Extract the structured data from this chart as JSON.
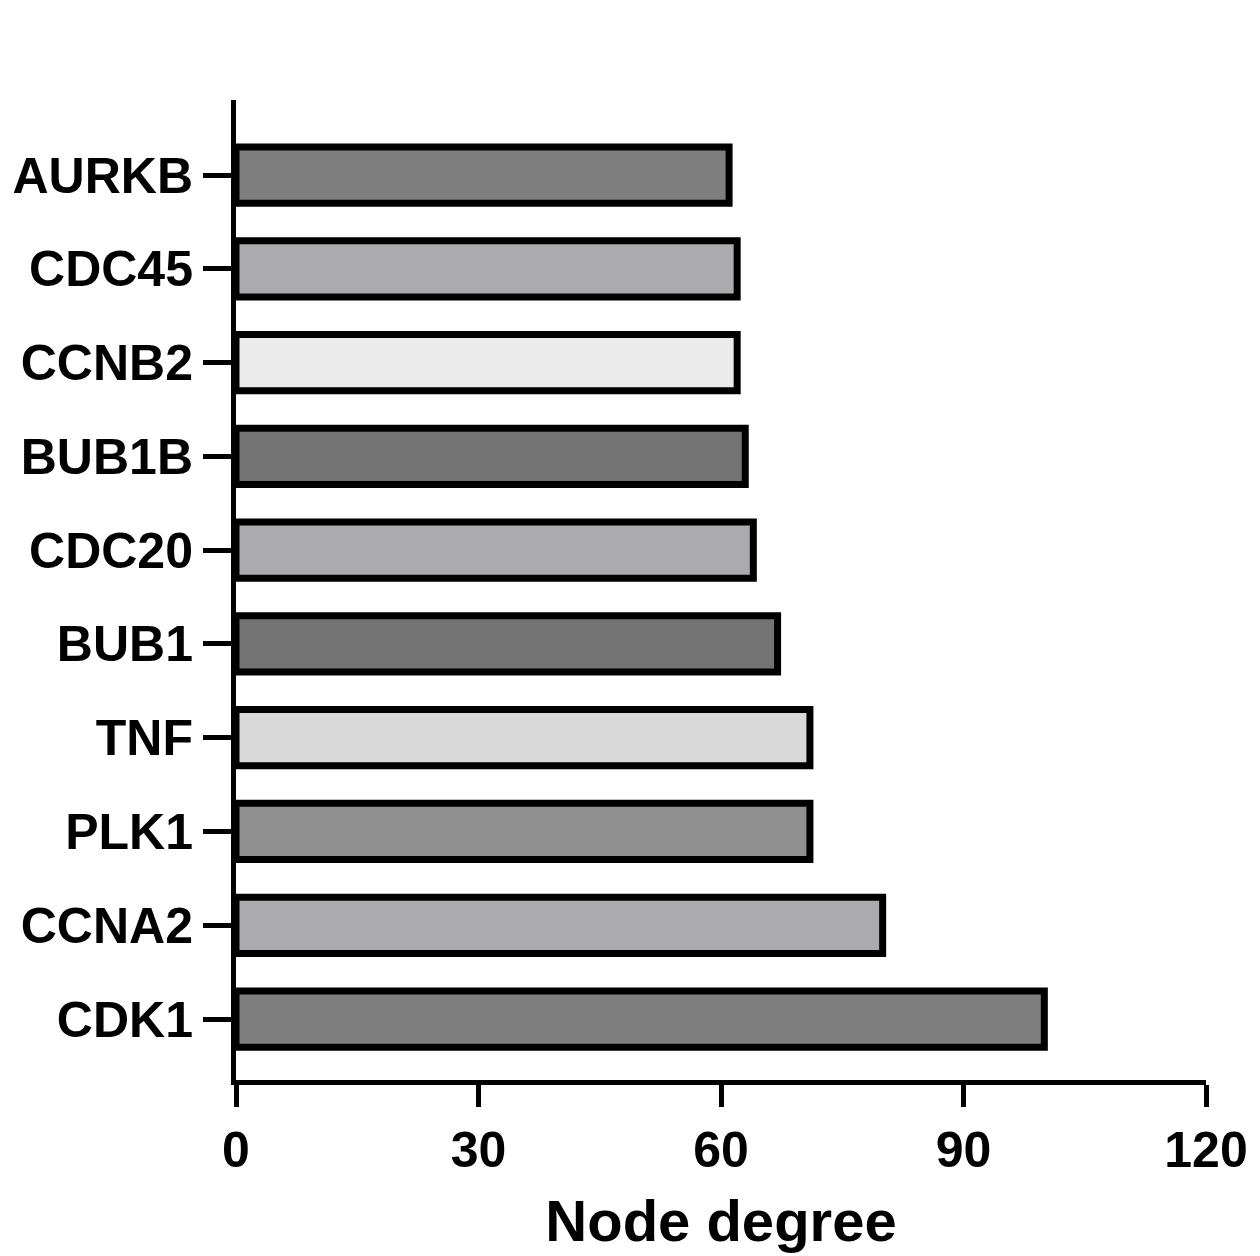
{
  "chart_data": {
    "type": "bar",
    "orientation": "horizontal",
    "xlabel": "Node degree",
    "categories": [
      "AURKB",
      "CDC45",
      "CCNB2",
      "BUB1B",
      "CDC20",
      "BUB1",
      "TNF",
      "PLK1",
      "CCNA2",
      "CDK1"
    ],
    "values": [
      61,
      62,
      62,
      63,
      64,
      67,
      71,
      71,
      80,
      100
    ],
    "colors": [
      "#7f7f7f",
      "#ababae",
      "#ebebeb",
      "#737373",
      "#ababae",
      "#737373",
      "#d9d9d9",
      "#8f8f8f",
      "#ababae",
      "#7f7f7f"
    ],
    "xlim": [
      0,
      120
    ],
    "xticks": [
      0,
      30,
      60,
      90,
      120
    ],
    "legend": false
  }
}
